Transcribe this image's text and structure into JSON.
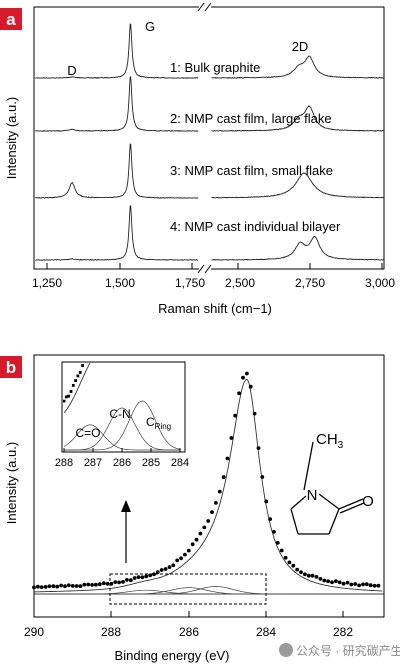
{
  "figure": {
    "panel_a": {
      "label": "a",
      "ylabel": "Intensity (a.u.)",
      "xlabel": "Raman shift (cm−1)",
      "x_ticks_left": [
        "1,250",
        "1,500",
        "1,750"
      ],
      "x_ticks_right": [
        "2,500",
        "2,750",
        "3,000"
      ],
      "peak_labels": [
        "D",
        "G",
        "2D"
      ],
      "spectra": [
        "1: Bulk graphite",
        "2: NMP cast film, large flake",
        "3: NMP cast film, small flake",
        "4: NMP cast individual bilayer"
      ]
    },
    "panel_b": {
      "label": "b",
      "ylabel": "Intensity (a.u.)",
      "xlabel": "Binding energy (eV)",
      "x_ticks": [
        "290",
        "288",
        "286",
        "284",
        "282"
      ],
      "inset": {
        "x_ticks": [
          "288",
          "287",
          "286",
          "285",
          "284"
        ],
        "component_labels": [
          "C=O",
          "C-N",
          "C",
          "Ring"
        ]
      },
      "molecule": {
        "methyl": "CH",
        "methyl_sub": "3",
        "n": "N",
        "o": "O"
      }
    },
    "watermark": "公众号 · 研究碳产生"
  },
  "chart_data": [
    {
      "type": "line",
      "title": "",
      "xlabel": "Raman shift (cm−1)",
      "ylabel": "Intensity (a.u.)",
      "x_axis_break": [
        1850,
        2350
      ],
      "xlim_left": [
        1200,
        1850
      ],
      "xlim_right": [
        2350,
        3000
      ],
      "peaks": [
        {
          "name": "D",
          "position": 1350
        },
        {
          "name": "G",
          "position": 1580
        },
        {
          "name": "2D",
          "position": 2700
        }
      ],
      "series": [
        {
          "name": "1: Bulk graphite",
          "D": 0.02,
          "G": 1.0,
          "2D": 0.35,
          "2D_shape": "asymmetric"
        },
        {
          "name": "2: NMP cast film, large flake",
          "D": 0.03,
          "G": 1.0,
          "2D": 0.4,
          "2D_shape": "asymmetric"
        },
        {
          "name": "3: NMP cast film, small flake",
          "D": 0.28,
          "G": 1.0,
          "2D": 0.45,
          "2D_shape": "broad"
        },
        {
          "name": "4: NMP cast individual bilayer",
          "D": 0.02,
          "G": 1.0,
          "2D": 0.45,
          "2D_shape": "split"
        }
      ],
      "grid": false
    },
    {
      "type": "scatter",
      "title": "",
      "xlabel": "Binding energy (eV)",
      "ylabel": "Intensity (a.u.)",
      "xlim": [
        290,
        281
      ],
      "x_reversed": true,
      "main_peak": {
        "position": 284.5,
        "height": 1.0
      },
      "components": [
        {
          "name": "C=O",
          "position": 287.1,
          "height": 0.018
        },
        {
          "name": "C-N",
          "position": 286.0,
          "height": 0.03
        },
        {
          "name": "C Ring",
          "position": 285.3,
          "height": 0.035
        }
      ],
      "inset": {
        "xlim": [
          288,
          284
        ],
        "shows": "expanded view of boxed region"
      },
      "grid": false
    }
  ]
}
